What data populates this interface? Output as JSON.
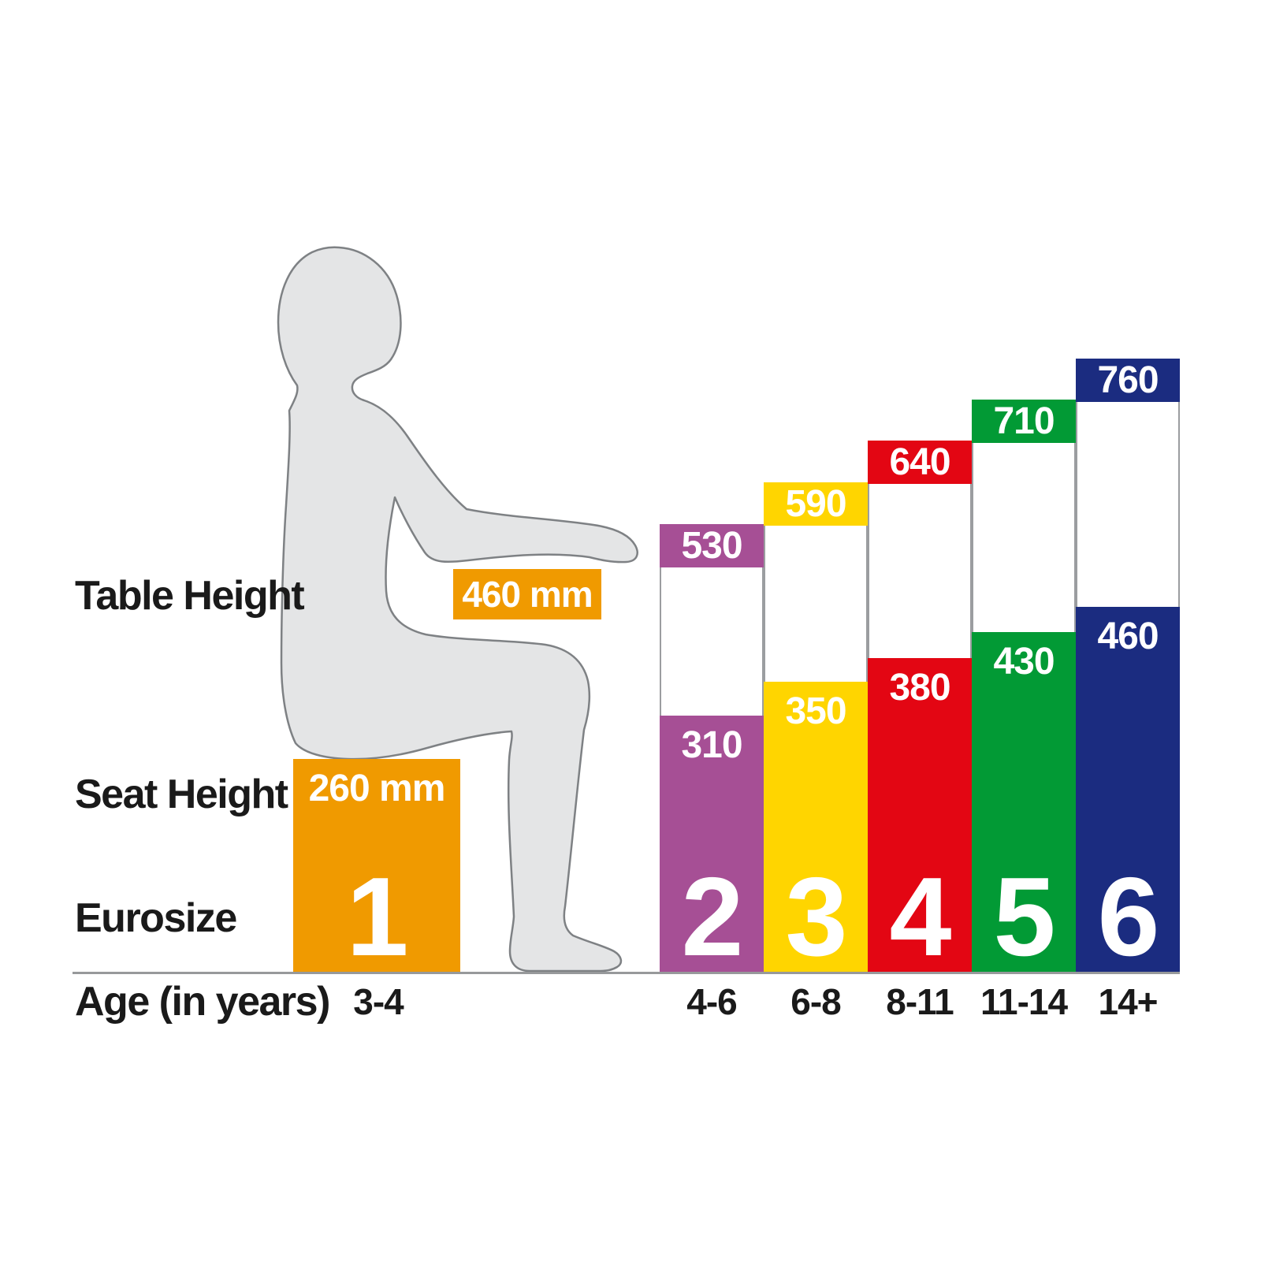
{
  "row_labels": {
    "table_height": "Table Height",
    "seat_height": "Seat Height",
    "eurosize": "Eurosize",
    "age": "Age (in years)"
  },
  "chart_data": {
    "type": "bar",
    "categories": {
      "eurosize": [
        "1",
        "2",
        "3",
        "4",
        "5",
        "6"
      ],
      "age_years": [
        "3-4",
        "4-6",
        "6-8",
        "8-11",
        "11-14",
        "14+"
      ]
    },
    "series": [
      {
        "name": "Table Height",
        "unit": "mm",
        "values": [
          460,
          530,
          590,
          640,
          710,
          760
        ]
      },
      {
        "name": "Seat Height",
        "unit": "mm",
        "values": [
          260,
          310,
          350,
          380,
          430,
          460
        ]
      }
    ],
    "value_labels": {
      "table": [
        "460 mm",
        "530",
        "590",
        "640",
        "710",
        "760"
      ],
      "seat": [
        "260 mm",
        "310",
        "350",
        "380",
        "430",
        "460"
      ]
    },
    "colors": [
      "#F09A00",
      "#A64F95",
      "#FFD500",
      "#E30613",
      "#029A35",
      "#1B2C80"
    ],
    "ylim": [
      0,
      760
    ],
    "grid": false,
    "legend": false,
    "baseline_color": "#97999B",
    "silhouette_fill": "#E4E5E6",
    "silhouette_outline": "#7E8184",
    "text_color": "#1A1A1A",
    "value_text_color": "#FFFFFF"
  }
}
